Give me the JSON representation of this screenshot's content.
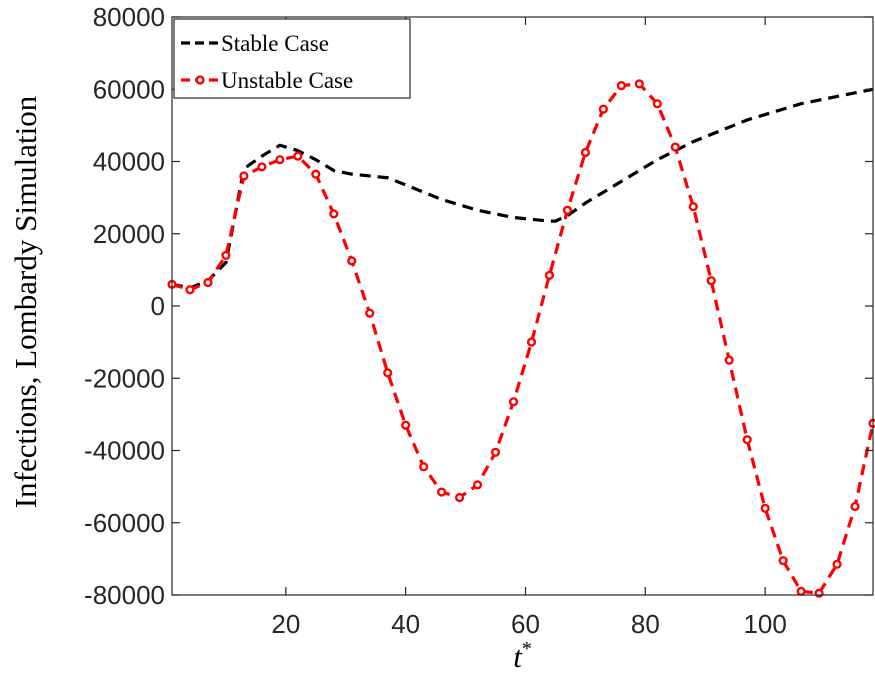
{
  "chart_data": {
    "type": "line",
    "title": "",
    "xlabel": "t",
    "xlabel_superscript": "*",
    "ylabel": "Infections, Lombardy Simulation",
    "xlim": [
      1,
      118
    ],
    "ylim": [
      -80000,
      80000
    ],
    "xticks": [
      20,
      40,
      60,
      80,
      100
    ],
    "xtick_labels": [
      "20",
      "40",
      "60",
      "80",
      "100"
    ],
    "yticks": [
      -80000,
      -60000,
      -40000,
      -20000,
      0,
      20000,
      40000,
      60000,
      80000
    ],
    "ytick_labels": [
      "-80000",
      "-60000",
      "-40000",
      "-20000",
      "0",
      "20000",
      "40000",
      "60000",
      "80000"
    ],
    "grid": false,
    "legend_position": "top-left",
    "series": [
      {
        "name": "Stable Case",
        "color": "#000000",
        "line_style": "dashed",
        "marker": "none",
        "x": [
          1,
          4,
          7,
          10,
          13,
          16,
          19,
          22,
          25,
          28,
          31,
          34,
          37,
          40,
          43,
          46,
          49,
          52,
          55,
          58,
          61,
          64,
          65,
          67,
          70,
          73,
          76,
          79,
          82,
          85,
          88,
          91,
          94,
          97,
          100,
          103,
          106,
          109,
          112,
          115,
          118
        ],
        "y": [
          6000,
          5000,
          7000,
          12000,
          38000,
          41500,
          44500,
          43000,
          40500,
          37500,
          36500,
          36000,
          35500,
          33500,
          31500,
          29500,
          28000,
          26500,
          25500,
          24500,
          24000,
          23500,
          23500,
          25000,
          28500,
          31500,
          34500,
          37500,
          40500,
          43000,
          45500,
          47500,
          49500,
          51500,
          53000,
          54500,
          56000,
          57000,
          58000,
          59000,
          60000
        ]
      },
      {
        "name": "Unstable Case",
        "color": "#ff0000",
        "line_style": "dashed",
        "marker": "circle",
        "x": [
          1,
          4,
          7,
          10,
          13,
          16,
          19,
          22,
          25,
          28,
          31,
          34,
          37,
          40,
          43,
          46,
          49,
          52,
          55,
          58,
          61,
          64,
          67,
          70,
          73,
          76,
          79,
          82,
          85,
          88,
          91,
          94,
          97,
          100,
          103,
          106,
          109,
          112,
          115,
          118
        ],
        "y": [
          6000,
          4500,
          6500,
          14000,
          36000,
          38500,
          40500,
          41500,
          36500,
          25500,
          12500,
          -2000,
          -18500,
          -33000,
          -44500,
          -51500,
          -53000,
          -49500,
          -40500,
          -26500,
          -10000,
          8500,
          26500,
          42500,
          54500,
          61000,
          61500,
          56000,
          44000,
          27500,
          7000,
          -15000,
          -37000,
          -56000,
          -70500,
          -79000,
          -79500,
          -71500,
          -55500,
          -32500
        ]
      }
    ]
  }
}
